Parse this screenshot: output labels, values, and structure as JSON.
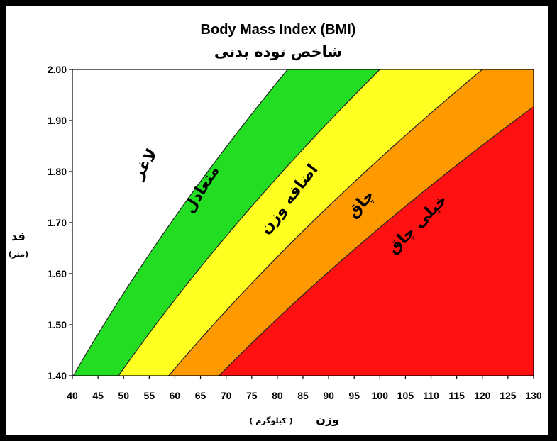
{
  "chart_data": {
    "type": "area",
    "title": "Body Mass Index (BMI)",
    "subtitle": "شاخص توده بدنی",
    "xlabel": "وزن",
    "xlabel_unit": "( کیلوگرم )",
    "ylabel": "قد",
    "ylabel_unit": "(متر)",
    "xlim": [
      40,
      130
    ],
    "ylim": [
      1.4,
      2.0
    ],
    "x_ticks": [
      "40",
      "45",
      "50",
      "55",
      "60",
      "65",
      "70",
      "75",
      "80",
      "85",
      "90",
      "95",
      "100",
      "105",
      "110",
      "115",
      "120",
      "125",
      "130"
    ],
    "y_ticks": [
      "1.40",
      "1.50",
      "1.60",
      "1.70",
      "1.80",
      "1.90",
      "2.00"
    ],
    "bmi_boundaries": [
      20.5,
      25,
      30,
      35
    ],
    "zones": [
      {
        "name": "لاغر",
        "bmi_range": [
          0,
          20.5
        ],
        "color": "#ffffff",
        "label_at": [
          55,
          1.81
        ],
        "rotation": -58
      },
      {
        "name": "متعادل",
        "bmi_range": [
          20.5,
          25
        ],
        "color": "#22dd22",
        "label_at": [
          66,
          1.76
        ],
        "rotation": -58
      },
      {
        "name": "اضافه وزن",
        "bmi_range": [
          25,
          30
        ],
        "color": "#ffff22",
        "label_at": [
          83,
          1.74
        ],
        "rotation": -52
      },
      {
        "name": "چاق",
        "bmi_range": [
          30,
          35
        ],
        "color": "#ff9900",
        "label_at": [
          97,
          1.73
        ],
        "rotation": -48
      },
      {
        "name": "خیلی چاق",
        "bmi_range": [
          35,
          1000
        ],
        "color": "#ff1111",
        "label_at": [
          108,
          1.69
        ],
        "rotation": -45
      }
    ],
    "grid": false,
    "legend": "none"
  }
}
